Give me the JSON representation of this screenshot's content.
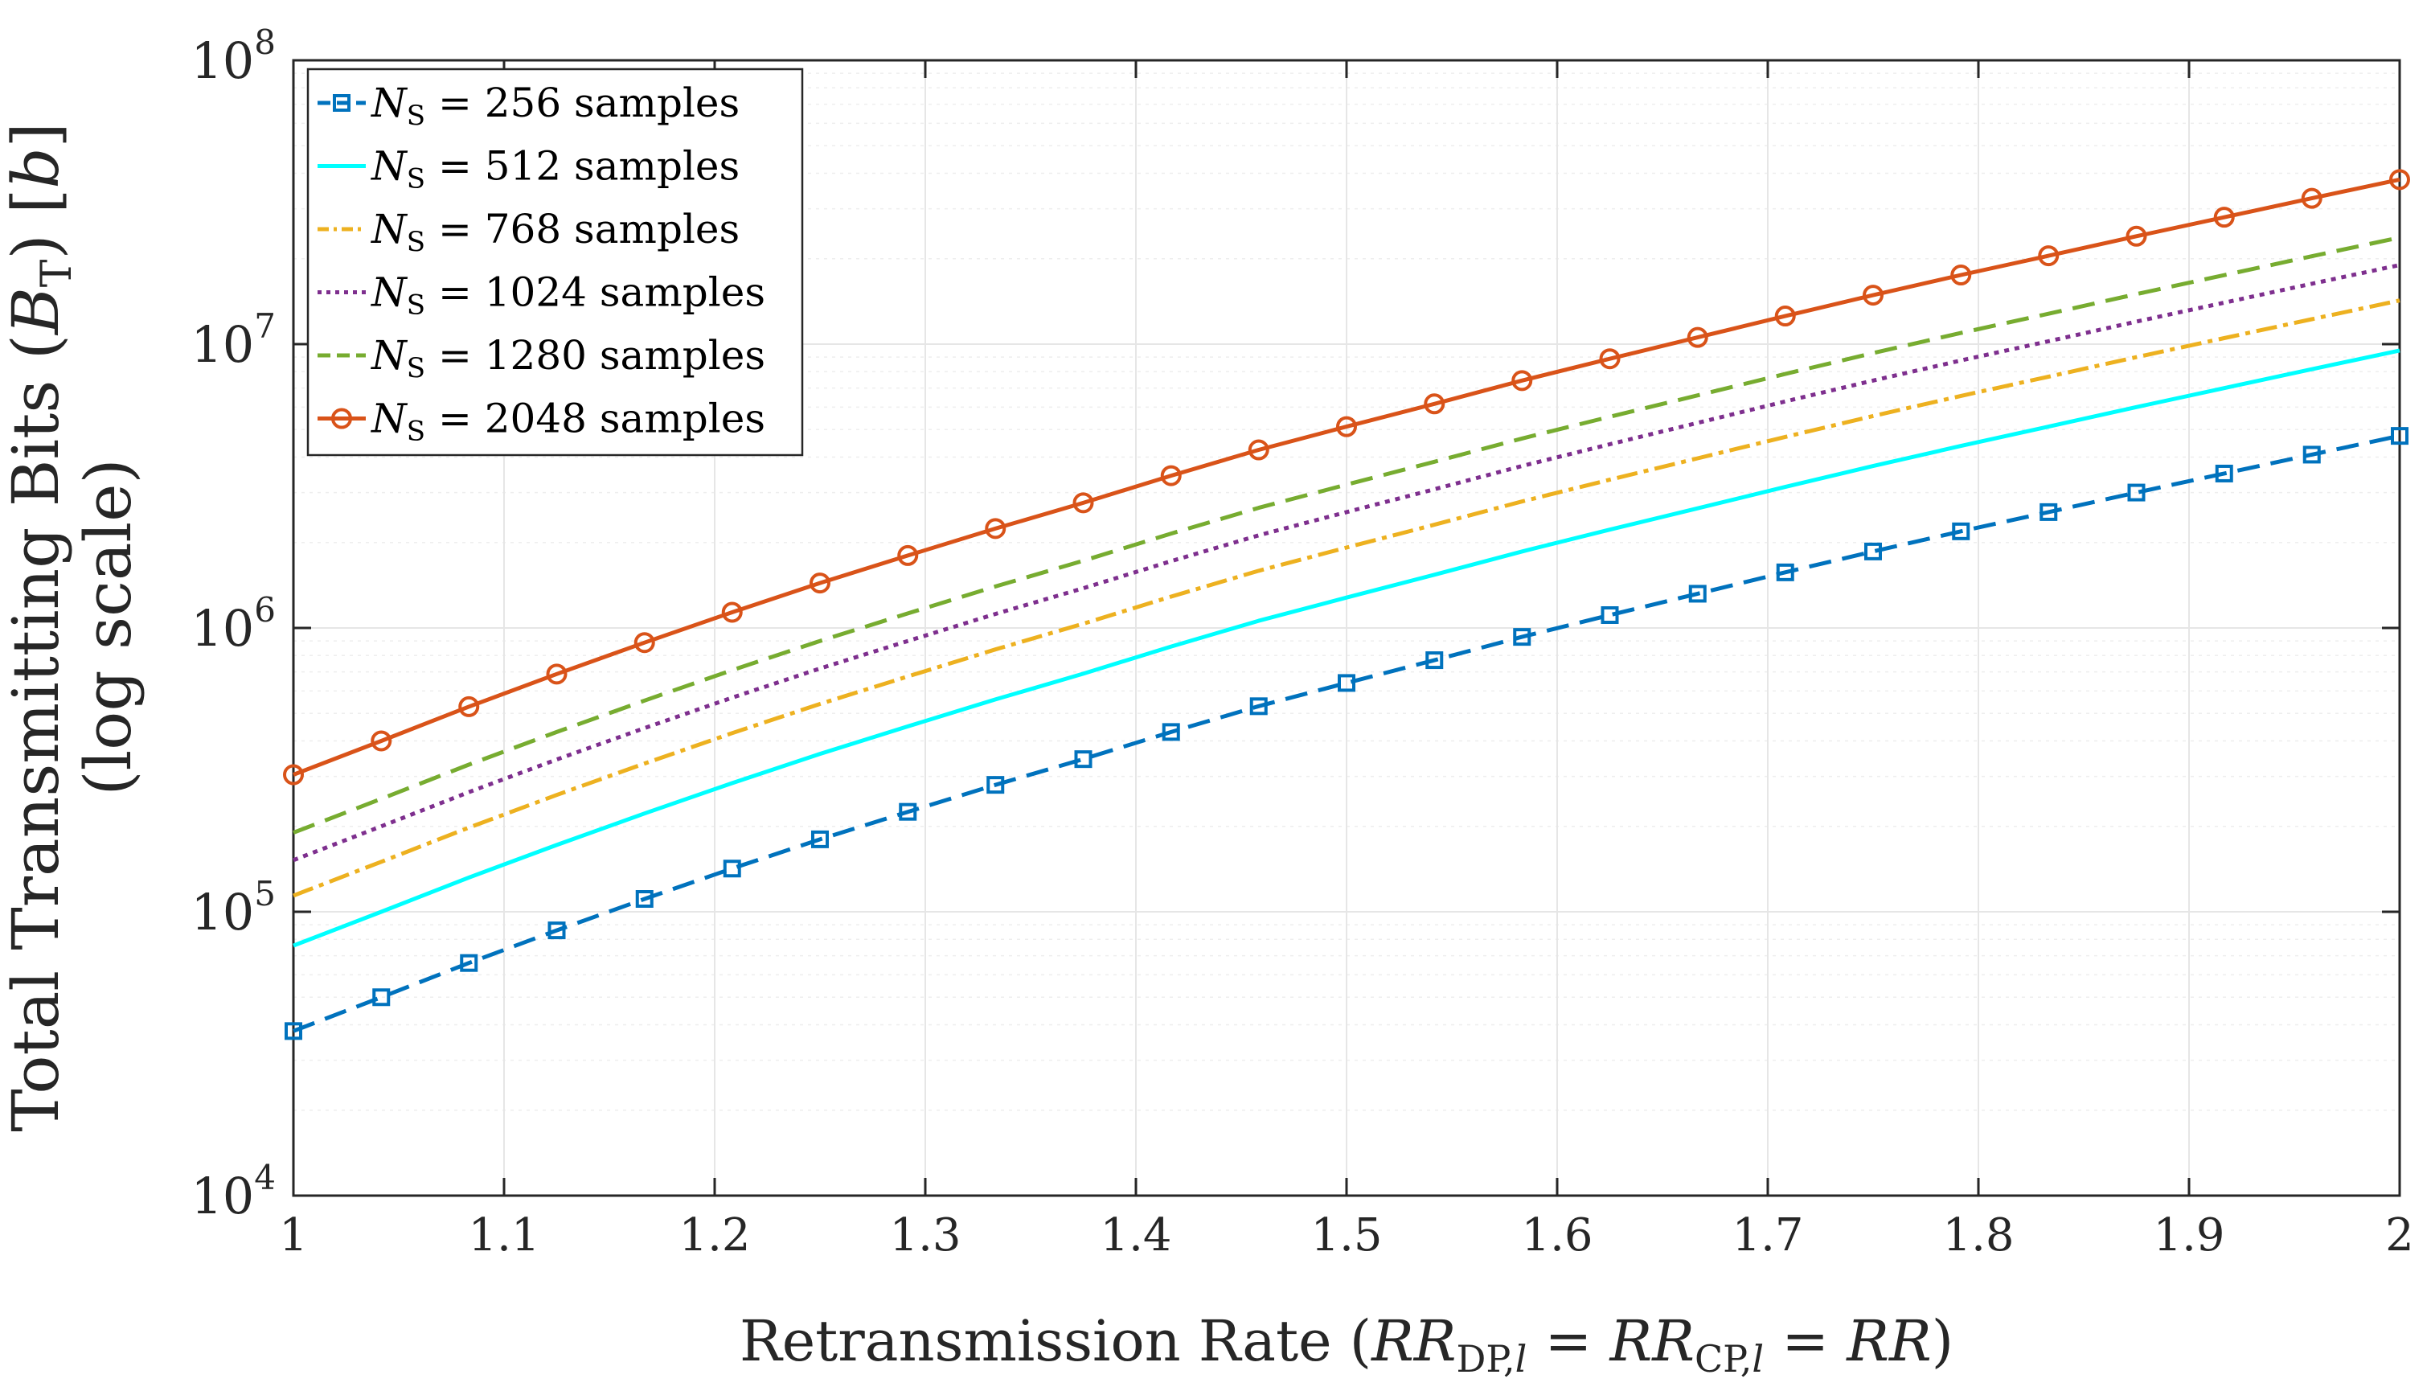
{
  "chart_data": {
    "type": "line",
    "title": "",
    "xlabel": {
      "prefix": "Retransmission Rate (",
      "t1": "RR",
      "s1": "DP,",
      "s1i": "l",
      "eq1": " = ",
      "t2": "RR",
      "s2": "CP,",
      "s2i": "l",
      "eq2": " = ",
      "t3": "RR",
      "suffix": ")"
    },
    "ylabel": {
      "line1_prefix": "Total Transmitting Bits (",
      "line1_var": "B",
      "line1_sub": "T",
      "line1_mid": ") [",
      "line1_unit": "b",
      "line1_suffix": "]",
      "line2": "(log scale)"
    },
    "xlim": [
      1,
      2
    ],
    "ylim": [
      10000,
      100000000
    ],
    "yscale": "log",
    "grid": true,
    "legend_position": "top-left",
    "x_ticks": [
      {
        "value": 1.0,
        "label": "1"
      },
      {
        "value": 1.1,
        "label": "1.1"
      },
      {
        "value": 1.2,
        "label": "1.2"
      },
      {
        "value": 1.3,
        "label": "1.3"
      },
      {
        "value": 1.4,
        "label": "1.4"
      },
      {
        "value": 1.5,
        "label": "1.5"
      },
      {
        "value": 1.6,
        "label": "1.6"
      },
      {
        "value": 1.7,
        "label": "1.7"
      },
      {
        "value": 1.8,
        "label": "1.8"
      },
      {
        "value": 1.9,
        "label": "1.9"
      },
      {
        "value": 2.0,
        "label": "2"
      }
    ],
    "y_ticks": [
      {
        "value": 10000,
        "base": "10",
        "exp": "4"
      },
      {
        "value": 100000,
        "base": "10",
        "exp": "5"
      },
      {
        "value": 1000000,
        "base": "10",
        "exp": "6"
      },
      {
        "value": 10000000,
        "base": "10",
        "exp": "7"
      },
      {
        "value": 100000000,
        "base": "10",
        "exp": "8"
      }
    ],
    "x": [
      1,
      1.0417,
      1.0833,
      1.125,
      1.1667,
      1.2083,
      1.25,
      1.2917,
      1.3333,
      1.375,
      1.4167,
      1.4583,
      1.5,
      1.5417,
      1.5833,
      1.625,
      1.6667,
      1.7083,
      1.75,
      1.7917,
      1.8333,
      1.875,
      1.9167,
      1.9583,
      2
    ],
    "series": [
      {
        "name_var": "N",
        "name_sub": "S",
        "name_rest": " = 256 samples",
        "color": "#0072BD",
        "dash": "28,14",
        "marker": "square",
        "values": [
          38000,
          50000,
          66000,
          86000,
          111000,
          142000,
          180000,
          225000,
          280000,
          345000,
          430000,
          530000,
          640000,
          770000,
          930000,
          1110000,
          1320000,
          1570000,
          1860000,
          2190000,
          2560000,
          3000000,
          3500000,
          4080000,
          4750000
        ]
      },
      {
        "name_var": "N",
        "name_sub": "S",
        "name_rest": " = 512 samples",
        "color": "#00FFFF",
        "dash": "",
        "marker": "none",
        "values": [
          76000,
          100000,
          132000,
          172000,
          222000,
          284000,
          360000,
          450000,
          560000,
          690000,
          860000,
          1060000,
          1280000,
          1540000,
          1860000,
          2220000,
          2640000,
          3140000,
          3720000,
          4380000,
          5120000,
          6000000,
          7000000,
          8160000,
          9500000
        ]
      },
      {
        "name_var": "N",
        "name_sub": "S",
        "name_rest": " = 768 samples",
        "color": "#EDB120",
        "dash": "26,8,6,8",
        "marker": "none",
        "values": [
          114000,
          150000,
          198000,
          258000,
          333000,
          426000,
          540000,
          675000,
          840000,
          1035000,
          1290000,
          1590000,
          1920000,
          2310000,
          2790000,
          3330000,
          3960000,
          4710000,
          5580000,
          6570000,
          7680000,
          9000000,
          10500000,
          12240000,
          14250000
        ]
      },
      {
        "name_var": "N",
        "name_sub": "S",
        "name_rest": " = 1024 samples",
        "color": "#7E2F8E",
        "dash": "6,7",
        "marker": "none",
        "values": [
          152000,
          200000,
          264000,
          344000,
          444000,
          568000,
          720000,
          900000,
          1120000,
          1380000,
          1720000,
          2120000,
          2560000,
          3080000,
          3720000,
          4440000,
          5280000,
          6280000,
          7440000,
          8760000,
          10240000,
          12000000,
          14000000,
          16320000,
          19000000
        ]
      },
      {
        "name_var": "N",
        "name_sub": "S",
        "name_rest": " = 1280 samples",
        "color": "#77AC30",
        "dash": "28,14",
        "marker": "none",
        "values": [
          190000,
          250000,
          330000,
          430000,
          555000,
          710000,
          900000,
          1125000,
          1400000,
          1725000,
          2150000,
          2650000,
          3200000,
          3850000,
          4650000,
          5550000,
          6600000,
          7850000,
          9300000,
          10950000,
          12800000,
          15000000,
          17500000,
          20400000,
          23750000
        ]
      },
      {
        "name_var": "N",
        "name_sub": "S",
        "name_rest": " = 2048 samples",
        "color": "#D95319",
        "dash": "",
        "marker": "circle",
        "values": [
          304000,
          400000,
          528000,
          688000,
          888000,
          1136000,
          1440000,
          1800000,
          2240000,
          2760000,
          3440000,
          4240000,
          5120000,
          6160000,
          7440000,
          8880000,
          10560000,
          12560000,
          14880000,
          17520000,
          20480000,
          24000000,
          28000000,
          32640000,
          38000000
        ]
      }
    ]
  }
}
